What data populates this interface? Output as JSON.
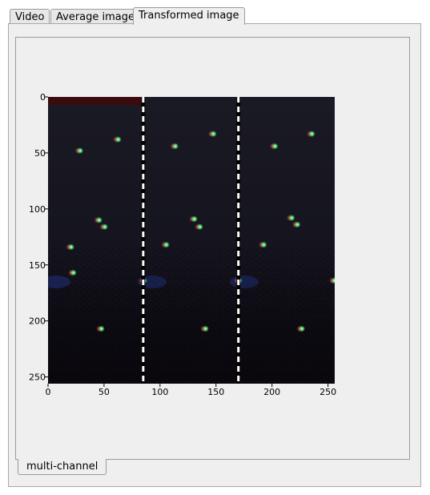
{
  "tabs": [
    {
      "label": "Video"
    },
    {
      "label": "Average image"
    },
    {
      "label": "Transformed image",
      "active": true
    }
  ],
  "bottom_tab": {
    "label": "multi-channel"
  },
  "image": {
    "colors": {
      "background": "#15141e",
      "bottom": "#0c0a10",
      "red_band": "#3a0a0e",
      "divider": "#ffffff"
    },
    "dividers_at_x": [
      85,
      170
    ]
  },
  "chart_data": {
    "type": "image",
    "title": "",
    "xlabel": "",
    "ylabel": "",
    "xlim": [
      0,
      256
    ],
    "ylim": [
      256,
      0
    ],
    "xticks": [
      "0",
      "50",
      "100",
      "150",
      "200",
      "250"
    ],
    "yticks": [
      "0",
      "50",
      "100",
      "150",
      "200",
      "250"
    ],
    "spots": [
      {
        "x": 28,
        "y": 48
      },
      {
        "x": 45,
        "y": 110
      },
      {
        "x": 50,
        "y": 116
      },
      {
        "x": 20,
        "y": 134
      },
      {
        "x": 62,
        "y": 38
      },
      {
        "x": 22,
        "y": 157
      },
      {
        "x": 113,
        "y": 44
      },
      {
        "x": 130,
        "y": 109
      },
      {
        "x": 135,
        "y": 116
      },
      {
        "x": 105,
        "y": 132
      },
      {
        "x": 147,
        "y": 33
      },
      {
        "x": 85,
        "y": 164
      },
      {
        "x": 202,
        "y": 44
      },
      {
        "x": 217,
        "y": 108
      },
      {
        "x": 222,
        "y": 114
      },
      {
        "x": 192,
        "y": 132
      },
      {
        "x": 235,
        "y": 33
      },
      {
        "x": 255,
        "y": 164
      },
      {
        "x": 170,
        "y": 164
      },
      {
        "x": 47,
        "y": 207
      },
      {
        "x": 140,
        "y": 207
      },
      {
        "x": 226,
        "y": 207
      }
    ]
  }
}
